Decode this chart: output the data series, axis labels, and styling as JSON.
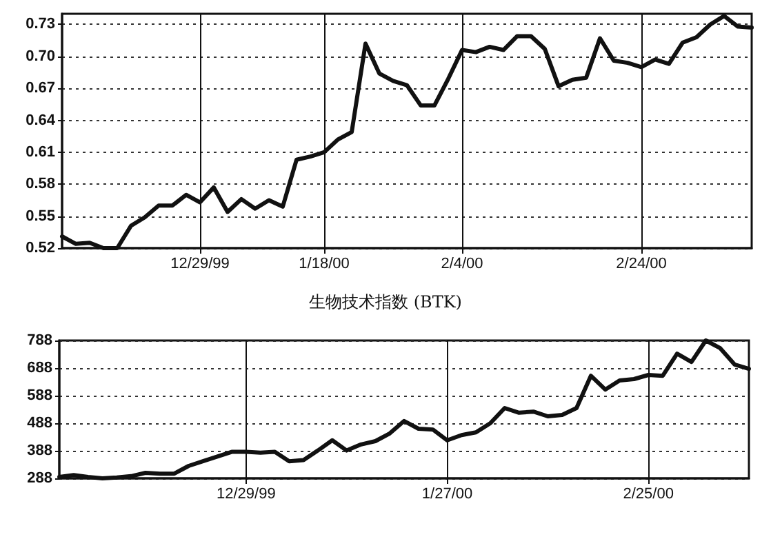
{
  "chart_data": [
    {
      "type": "line",
      "categories": [
        null,
        null,
        null,
        null,
        null,
        null,
        null,
        null,
        null,
        null,
        "12/29/99",
        null,
        null,
        null,
        null,
        null,
        null,
        null,
        null,
        "1/18/00",
        null,
        null,
        null,
        null,
        null,
        null,
        null,
        null,
        null,
        "2/4/00",
        null,
        null,
        null,
        null,
        null,
        null,
        null,
        null,
        null,
        null,
        null,
        null,
        "2/24/00",
        null,
        null,
        null,
        null,
        null,
        null,
        null,
        null
      ],
      "series": [
        {
          "color": "#111111",
          "values": [
            0.531,
            0.524,
            0.525,
            0.52,
            0.52,
            0.541,
            0.549,
            0.56,
            0.56,
            0.57,
            0.563,
            0.577,
            0.554,
            0.566,
            0.557,
            0.565,
            0.559,
            0.603,
            0.606,
            0.61,
            0.622,
            0.629,
            0.712,
            0.684,
            0.677,
            0.673,
            0.654,
            0.654,
            0.679,
            0.706,
            0.704,
            0.709,
            0.706,
            0.719,
            0.719,
            0.707,
            0.672,
            0.678,
            0.68,
            0.717,
            0.696,
            0.694,
            0.69,
            0.697,
            0.693,
            0.713,
            0.718,
            0.73,
            0.738,
            0.728,
            0.727
          ]
        }
      ],
      "ylim": [
        0.52,
        0.74
      ],
      "yticks": [
        0.52,
        0.55,
        0.58,
        0.61,
        0.64,
        0.67,
        {
          "value": 0.7,
          "label": "0.70"
        },
        0.73
      ],
      "grid": true,
      "marker": "none",
      "line_style": "solid"
    },
    {
      "type": "line",
      "title": "生物技术指数 (BTK)",
      "categories": [
        null,
        null,
        null,
        null,
        null,
        null,
        null,
        null,
        null,
        null,
        null,
        null,
        null,
        "12/29/99",
        null,
        null,
        null,
        null,
        null,
        null,
        null,
        null,
        null,
        null,
        null,
        null,
        null,
        "1/27/00",
        null,
        null,
        null,
        null,
        null,
        null,
        null,
        null,
        null,
        null,
        null,
        null,
        null,
        "2/25/00",
        null,
        null,
        null,
        null,
        null,
        null,
        null
      ],
      "series": [
        {
          "color": "#111111",
          "values": [
            293,
            300,
            293,
            288,
            291,
            296,
            308,
            305,
            305,
            333,
            350,
            367,
            384,
            384,
            381,
            384,
            350,
            354,
            389,
            426,
            389,
            411,
            423,
            451,
            496,
            468,
            465,
            426,
            445,
            455,
            488,
            543,
            526,
            530,
            513,
            518,
            543,
            660,
            610,
            643,
            648,
            663,
            660,
            740,
            710,
            788,
            760,
            701,
            685
          ]
        }
      ],
      "ylim": [
        288,
        788
      ],
      "yticks": [
        288,
        388,
        488,
        588,
        688,
        788
      ],
      "grid": true,
      "marker": "none",
      "line_style": "solid"
    }
  ]
}
